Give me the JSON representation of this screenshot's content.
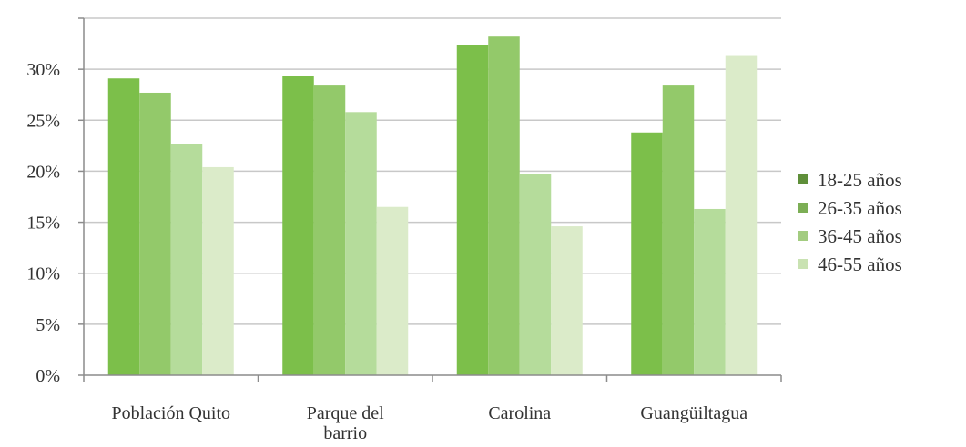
{
  "chart_data": {
    "type": "bar",
    "title": "",
    "xlabel": "",
    "ylabel": "",
    "categories": [
      [
        "Población Quito"
      ],
      [
        "Parque del",
        "barrio"
      ],
      [
        "Carolina"
      ],
      [
        "Guangüiltagua"
      ]
    ],
    "series": [
      {
        "name": "18-25 años",
        "color": "#7cbf4a",
        "values": [
          29.1,
          29.3,
          32.4,
          23.8
        ]
      },
      {
        "name": "26-35 años",
        "color": "#93c96a",
        "values": [
          27.7,
          28.4,
          33.2,
          28.4
        ]
      },
      {
        "name": "36-45 años",
        "color": "#b5dc9b",
        "values": [
          22.7,
          25.8,
          19.7,
          16.3
        ]
      },
      {
        "name": "46-55 años",
        "color": "#dbebc9",
        "values": [
          20.4,
          16.5,
          14.6,
          31.3
        ]
      }
    ],
    "legend_swatch_colors": [
      "#5f8f3a",
      "#7cae55",
      "#a3cc80",
      "#c9e2b2"
    ],
    "ylim": [
      0,
      35
    ],
    "yticks": [
      0,
      5,
      10,
      15,
      20,
      25,
      30
    ],
    "ytick_labels": [
      "0%",
      "5%",
      "10%",
      "15%",
      "20%",
      "25%",
      "30%"
    ],
    "grid": true,
    "legend_position": "right"
  }
}
